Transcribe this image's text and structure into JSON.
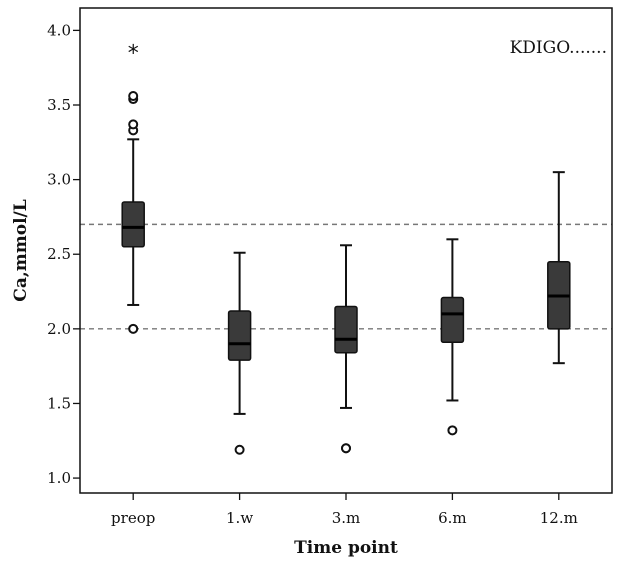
{
  "chart_data": {
    "type": "boxplot",
    "xlabel": "Time point",
    "ylabel": "Ca,mmol/L",
    "ylim": [
      0.9,
      4.15
    ],
    "yticks": [
      "1.0",
      "1.5",
      "2.0",
      "2.5",
      "3.0",
      "3.5",
      "4.0"
    ],
    "categories": [
      "preop",
      "1.w",
      "3.m",
      "6.m",
      "12.m"
    ],
    "reference_lines": [
      2.0,
      2.7
    ],
    "legend": "KDIGO.......",
    "legend_position": "top-right",
    "box_color": "#3a3a3a",
    "reference_color": "#777777",
    "boxes": [
      {
        "category": "preop",
        "whisker_low": 2.16,
        "q1": 2.55,
        "median": 2.68,
        "q3": 2.85,
        "whisker_high": 3.27,
        "outliers": [
          2.0,
          3.33,
          3.37,
          3.54,
          3.56
        ],
        "extremes": [
          3.86
        ]
      },
      {
        "category": "1.w",
        "whisker_low": 1.43,
        "q1": 1.79,
        "median": 1.9,
        "q3": 2.12,
        "whisker_high": 2.51,
        "outliers": [
          1.19
        ],
        "extremes": []
      },
      {
        "category": "3.m",
        "whisker_low": 1.47,
        "q1": 1.84,
        "median": 1.93,
        "q3": 2.15,
        "whisker_high": 2.56,
        "outliers": [
          1.2,
          1.2
        ],
        "extremes": []
      },
      {
        "category": "6.m",
        "whisker_low": 1.52,
        "q1": 1.91,
        "median": 2.1,
        "q3": 2.21,
        "whisker_high": 2.6,
        "outliers": [
          1.32
        ],
        "extremes": []
      },
      {
        "category": "12.m",
        "whisker_low": 1.77,
        "q1": 2.0,
        "median": 2.22,
        "q3": 2.45,
        "whisker_high": 3.05,
        "outliers": [],
        "extremes": []
      }
    ]
  }
}
